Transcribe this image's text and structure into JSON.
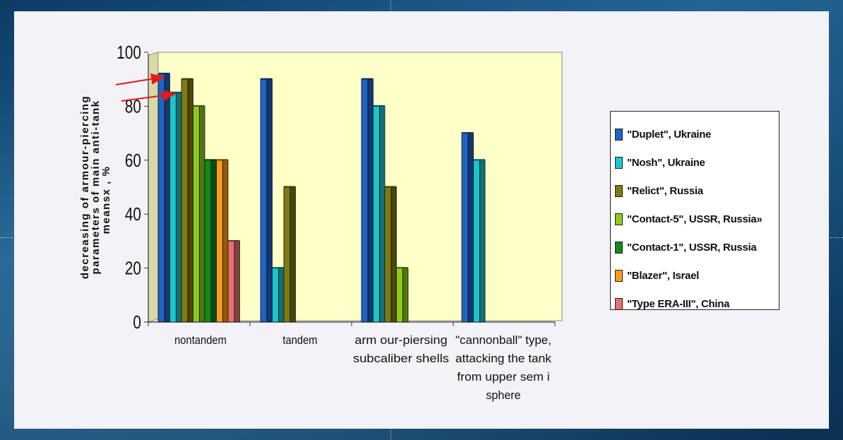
{
  "colors": {
    "plot_bg": "#ffffc8",
    "arrow": "#e31b1b"
  },
  "chart_data": {
    "type": "bar",
    "title": "",
    "ylabel": [
      "decreasing of armour-piercing",
      "parameters of main anti-tank",
      "meansx , %"
    ],
    "xlabel": "",
    "ylim": [
      0,
      100
    ],
    "yticks": [
      0,
      20,
      40,
      60,
      80,
      100
    ],
    "grid": false,
    "legend_position": "right",
    "categories": [
      [
        "nontandem"
      ],
      [
        "tandem"
      ],
      [
        "arm our-piersing",
        "subcaliber shells"
      ],
      [
        "\"cannonball\" type,",
        "attacking the tank",
        "from upper sem i",
        "sphere"
      ]
    ],
    "series": [
      {
        "name": "\"Duplet\", Ukraine",
        "color": "#1f63c6",
        "values": [
          92,
          90,
          90,
          70
        ]
      },
      {
        "name": "\"Nosh\", Ukraine",
        "color": "#19c6cc",
        "values": [
          85,
          20,
          80,
          60
        ]
      },
      {
        "name": "\"Relict\", Russia",
        "color": "#7f7a12",
        "values": [
          90,
          50,
          50,
          null
        ]
      },
      {
        "name": "\"Contact-5\", USSR, Russia»",
        "color": "#8ccc18",
        "values": [
          80,
          null,
          20,
          null
        ]
      },
      {
        "name": "\"Contact-1\", USSR, Russia",
        "color": "#0e8a1e",
        "values": [
          60,
          null,
          null,
          null
        ]
      },
      {
        "name": "\"Blazer\", Israel",
        "color": "#ff9a1a",
        "values": [
          60,
          null,
          null,
          null
        ]
      },
      {
        "name": "\"Type ERA-III\", China",
        "color": "#e87070",
        "values": [
          30,
          null,
          null,
          null
        ]
      }
    ]
  }
}
